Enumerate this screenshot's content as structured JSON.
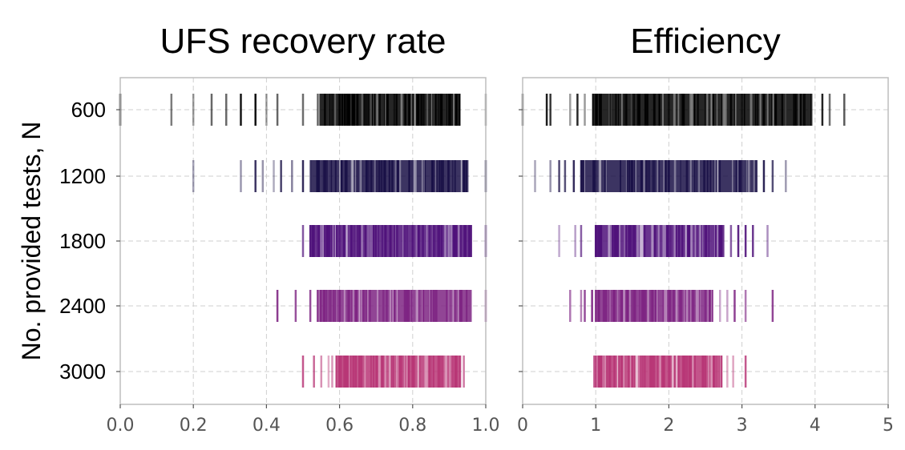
{
  "ylabel": "No. provided tests, N",
  "categories": [
    "600",
    "1200",
    "1800",
    "2400",
    "3000"
  ],
  "colors": [
    "#000000",
    "#1a1147",
    "#4f117a",
    "#7e2583",
    "#b83676"
  ],
  "chart_data": [
    {
      "type": "strip",
      "title": "UFS recovery rate",
      "xlim": [
        0,
        1
      ],
      "xticks": [
        "0.0",
        "0.2",
        "0.4",
        "0.6",
        "0.8",
        "1.0"
      ],
      "xtick_values": [
        0,
        0.2,
        0.4,
        0.6,
        0.8,
        1.0
      ],
      "grid": true,
      "series": [
        {
          "category": "600",
          "dense_range": [
            0.54,
            0.93
          ],
          "values": [
            0.0,
            0.14,
            0.2,
            0.25,
            0.29,
            0.33,
            0.37,
            0.4,
            0.43,
            0.5,
            0.54,
            0.56,
            0.58,
            0.6,
            0.62,
            0.64,
            0.67,
            0.69,
            0.71,
            0.73,
            0.75,
            0.78,
            0.8,
            0.83,
            0.86,
            0.88,
            0.9,
            0.92,
            1.0
          ]
        },
        {
          "category": "1200",
          "dense_range": [
            0.52,
            0.95
          ],
          "values": [
            0.2,
            0.33,
            0.37,
            0.39,
            0.42,
            0.44,
            0.47,
            0.5,
            0.52,
            0.56,
            0.62,
            0.65,
            0.68,
            0.72,
            0.75,
            0.8,
            0.85,
            0.9,
            0.95,
            1.0
          ]
        },
        {
          "category": "1800",
          "dense_range": [
            0.52,
            0.96
          ],
          "values": [
            0.5,
            0.52,
            0.54,
            0.56,
            0.6,
            0.64,
            0.67,
            0.7,
            0.74,
            0.8,
            0.86,
            0.92,
            0.96,
            1.0
          ]
        },
        {
          "category": "2400",
          "dense_range": [
            0.54,
            0.96
          ],
          "values": [
            0.43,
            0.48,
            0.52,
            0.54,
            0.57,
            0.6,
            0.67,
            0.72,
            0.78,
            0.85,
            0.9,
            0.93,
            0.96,
            1.0
          ]
        },
        {
          "category": "3000",
          "dense_range": [
            0.59,
            0.93
          ],
          "values": [
            0.5,
            0.53,
            0.55,
            0.57,
            0.58,
            0.6,
            0.65,
            0.7,
            0.77,
            0.85,
            0.91,
            0.93,
            0.94
          ]
        }
      ]
    },
    {
      "type": "strip",
      "title": "Efficiency",
      "xlim": [
        0,
        5
      ],
      "xticks": [
        "0",
        "1",
        "2",
        "3",
        "4",
        "5"
      ],
      "xtick_values": [
        0,
        1,
        2,
        3,
        4,
        5
      ],
      "grid": true,
      "series": [
        {
          "category": "600",
          "dense_range": [
            0.95,
            3.95
          ],
          "values": [
            0.0,
            0.33,
            0.38,
            0.65,
            0.75,
            0.85,
            1.0,
            1.2,
            1.5,
            2.0,
            2.5,
            3.0,
            3.3,
            3.6,
            3.8,
            3.95,
            4.1,
            4.2,
            4.4
          ]
        },
        {
          "category": "1200",
          "dense_range": [
            0.8,
            3.2
          ],
          "values": [
            0.17,
            0.38,
            0.5,
            0.58,
            0.7,
            0.8,
            1.0,
            1.5,
            2.0,
            2.5,
            3.0,
            3.2,
            3.3,
            3.42,
            3.6
          ]
        },
        {
          "category": "1800",
          "dense_range": [
            1.0,
            2.75
          ],
          "values": [
            0.5,
            0.72,
            0.8,
            1.0,
            1.5,
            2.0,
            2.5,
            2.75,
            2.85,
            2.95,
            3.05,
            3.15,
            3.35
          ]
        },
        {
          "category": "2400",
          "dense_range": [
            1.0,
            2.6
          ],
          "values": [
            0.65,
            0.8,
            0.85,
            0.95,
            1.0,
            1.5,
            2.0,
            2.5,
            2.7,
            2.8,
            2.9,
            3.05,
            3.42
          ]
        },
        {
          "category": "3000",
          "dense_range": [
            1.0,
            2.7
          ],
          "values": [
            0.98,
            1.0,
            1.5,
            2.0,
            2.5,
            2.65,
            2.72,
            2.8,
            2.88,
            3.05
          ]
        }
      ]
    }
  ]
}
